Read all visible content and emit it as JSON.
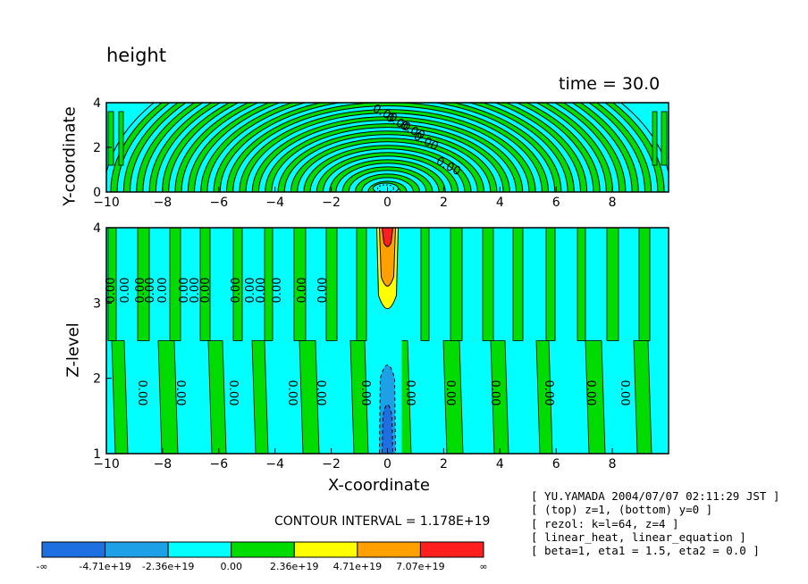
{
  "title": "height",
  "time_label": "time = 30.0",
  "interval_text": "CONTOUR INTERVAL = 1.178E+19",
  "info_lines": [
    "[ YU.YAMADA 2004/07/07 02:11:29 JST ]",
    "[ (top) z=1, (bottom) y=0 ]",
    "[ rezol: k=l=64, z=4 ]",
    "[ linear_heat, linear_equation ]",
    "[ beta=1, eta1 = 1.5, eta2 = 0.0 ]"
  ],
  "colors": {
    "levels": [
      "#1e6fe0",
      "#1ea0e6",
      "#00ffff",
      "#00dc00",
      "#ffff00",
      "#ffa000",
      "#ff1e1e"
    ]
  },
  "chart_data": [
    {
      "type": "heatmap",
      "panel": "top",
      "xlabel": "",
      "ylabel": "Y-coordinate",
      "xlim": [
        -10,
        10
      ],
      "ylim": [
        0,
        4
      ],
      "x_ticks": [
        -10,
        -8,
        -6,
        -4,
        -2,
        0,
        2,
        4,
        6,
        8
      ],
      "y_ticks": [
        0,
        2,
        4
      ],
      "contour_labels": [
        "0.00",
        "0.00",
        "0.00",
        "0.00",
        "0.00"
      ],
      "description": "concentric semicircular bands alternating cyan/green centered at x=0,y=0"
    },
    {
      "type": "heatmap",
      "panel": "bottom",
      "xlabel": "X-coordinate",
      "ylabel": "Z-level",
      "xlim": [
        -10,
        10
      ],
      "ylim": [
        1,
        4
      ],
      "x_ticks": [
        -10,
        -8,
        -6,
        -4,
        -2,
        0,
        2,
        4,
        6,
        8
      ],
      "y_ticks": [
        1,
        2,
        3,
        4
      ],
      "contour_labels_upper": [
        "0.00",
        "0.00",
        "0.00",
        "0.00",
        "0.00",
        "0.00",
        "0.00",
        "0.00",
        "0.00",
        "0.00",
        "0.00",
        "0.00",
        "0.00",
        "0.00"
      ],
      "contour_labels_lower": [
        "0.00",
        "0.00",
        "0.00",
        "0.00",
        "0.00",
        "0.00",
        "0.00",
        "0.00",
        "0.00",
        "0.00",
        "0.00",
        "0.00"
      ],
      "description": "vertical stripes of cyan/green; positive anomaly (yellow/orange/red) above z=2.5 near x=0, negative (blue) below"
    }
  ],
  "colorbar": {
    "labels": [
      "-∞",
      "-4.71e+19",
      "-2.36e+19",
      "0.00",
      "2.36e+19",
      "4.71e+19",
      "7.07e+19",
      "∞"
    ]
  }
}
